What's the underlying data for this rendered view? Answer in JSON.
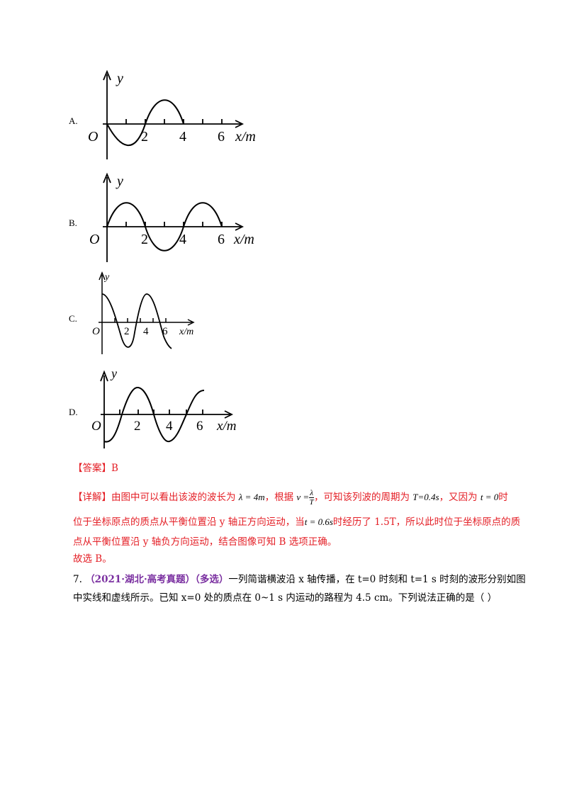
{
  "options": [
    {
      "label": "A."
    },
    {
      "label": "B."
    },
    {
      "label": "C."
    },
    {
      "label": "D."
    }
  ],
  "graph_text": {
    "y": "y",
    "origin": "O",
    "xlabel": "x/m",
    "t2": "2",
    "t4": "4",
    "t6": "6"
  },
  "answer": {
    "prefix": "【答案】",
    "value": "B"
  },
  "detail": {
    "prefix": "【详解】",
    "p1": "由图中可以看出该波的波长为",
    "m1": "λ = 4m",
    "p2": "，根据",
    "m2_lhs": "v =",
    "m2_num": "λ",
    "m2_den": "T",
    "p3": "，可知该列波的周期为",
    "m3": "T=0.4s",
    "p4": "，又因为",
    "m4": "t = 0",
    "p5": "时",
    "line2a": "位于坐标原点的质点从平衡位置沿 y 轴正方向运动，当",
    "m5": "t = 0.6s",
    "line2b": "时经历了 1.5T，所以此时位于坐标原点的质",
    "line3": "点从平衡位置沿 y 轴负方向运动，结合图像可知 B 选项正确。",
    "conclusion": "故选 B。"
  },
  "question": {
    "number": "7.",
    "source": "（2021·湖北·高考真题）（多选）",
    "line1": "一列简谐横波沿  x 轴传播，在 t=0 时刻和 t=1 s 时刻的波形分别如图",
    "line2": "中实线和虚线所示。已知 x=0 处的质点在 0~1 s 内运动的路程为 4.5 cm。下列说法正确的是（      ）"
  }
}
